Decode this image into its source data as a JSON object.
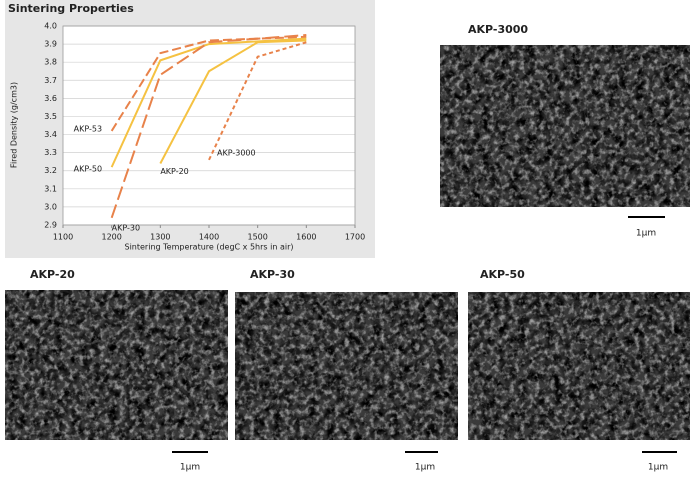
{
  "chart_data": {
    "type": "line",
    "title": "Sintering Properties",
    "x_label": "Sintering Temperature (degC x 5hrs in air)",
    "y_label": "Fired Density (g/cm3)",
    "xlim": [
      1100,
      1700
    ],
    "xticks": [
      1100,
      1200,
      1300,
      1400,
      1500,
      1600,
      1700
    ],
    "ylim": [
      2.9,
      4.0
    ],
    "yticks": [
      2.9,
      {
        "value": 3.0,
        "label": "3.0"
      },
      3.1,
      3.2,
      3.3,
      3.4,
      3.5,
      3.6,
      3.7,
      3.8,
      3.9,
      {
        "value": 4.0,
        "label": "4.0"
      }
    ],
    "grid": true,
    "series": [
      {
        "name": "AKP-53",
        "color": "#e8824a",
        "dash": "dashed",
        "x": [
          1200,
          1300,
          1400,
          1600
        ],
        "values": [
          3.42,
          3.85,
          3.92,
          3.94
        ]
      },
      {
        "name": "AKP-50",
        "color": "#f5c242",
        "dash": "solid",
        "x": [
          1200,
          1300,
          1400,
          1600
        ],
        "values": [
          3.22,
          3.81,
          3.9,
          3.93
        ]
      },
      {
        "name": "AKP-30",
        "color": "#e8824a",
        "dash": "long-dashed",
        "x": [
          1200,
          1300,
          1400,
          1600
        ],
        "values": [
          2.94,
          3.73,
          3.91,
          3.95
        ]
      },
      {
        "name": "AKP-20",
        "color": "#f5c242",
        "dash": "solid",
        "x": [
          1300,
          1400,
          1500,
          1600
        ],
        "values": [
          3.24,
          3.75,
          3.91,
          3.92
        ]
      },
      {
        "name": "AKP-3000",
        "color": "#e8824a",
        "dash": "dotted",
        "x": [
          1400,
          1500,
          1600
        ],
        "values": [
          3.26,
          3.83,
          3.91
        ]
      }
    ]
  },
  "images": [
    {
      "title": "AKP-3000",
      "scale": "1μm"
    },
    {
      "title": "AKP-20",
      "scale": "1μm"
    },
    {
      "title": "AKP-30",
      "scale": "1μm"
    },
    {
      "title": "AKP-50",
      "scale": "1μm"
    }
  ]
}
